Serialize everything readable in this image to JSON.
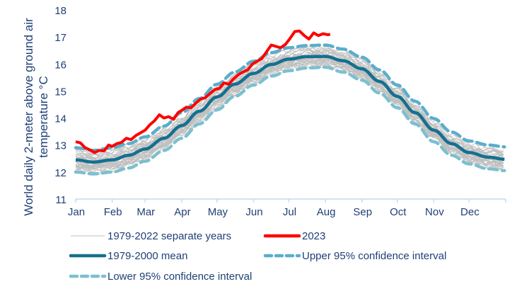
{
  "chart_data": {
    "type": "line",
    "title": "",
    "ylabel_lines": [
      "World daily 2-meter above ground air",
      "temperature °C"
    ],
    "xlabel": "",
    "ylim": [
      11,
      18
    ],
    "yticks": [
      11,
      12,
      13,
      14,
      15,
      16,
      17,
      18
    ],
    "xlim_day": [
      0,
      365
    ],
    "month_tick_days": [
      0,
      31,
      59,
      90,
      120,
      151,
      181,
      212,
      243,
      273,
      304,
      334,
      365
    ],
    "month_labels": [
      "Jan",
      "Feb",
      "Mar",
      "Apr",
      "May",
      "Jun",
      "Jul",
      "Aug",
      "Sep",
      "Oct",
      "Nov",
      "Dec"
    ],
    "grid": false,
    "legend_position": "bottom",
    "colors": {
      "separate_years": "#bfbfbf",
      "year_2023": "#ff0000",
      "mean": "#14708f",
      "upper_ci": "#5aaecb",
      "lower_ci": "#7cc0cf",
      "axis": "#c5d9f1",
      "text": "#1f3f77"
    },
    "series": [
      {
        "name": "1979-2000 mean",
        "key": "mean",
        "x_day": [
          0,
          15,
          31,
          45,
          59,
          75,
          90,
          105,
          120,
          135,
          151,
          166,
          181,
          196,
          212,
          227,
          243,
          258,
          273,
          288,
          304,
          319,
          334,
          350,
          365
        ],
        "values": [
          12.45,
          12.37,
          12.45,
          12.62,
          12.85,
          13.25,
          13.72,
          14.25,
          14.78,
          15.25,
          15.65,
          15.98,
          16.18,
          16.27,
          16.28,
          16.12,
          15.82,
          15.35,
          14.8,
          14.2,
          13.55,
          13.05,
          12.72,
          12.55,
          12.47
        ]
      },
      {
        "name": "Upper 95% confidence interval",
        "key": "upper_ci",
        "x_day": [
          0,
          15,
          31,
          45,
          59,
          75,
          90,
          105,
          120,
          135,
          151,
          166,
          181,
          196,
          212,
          227,
          243,
          258,
          273,
          288,
          304,
          319,
          334,
          350,
          365
        ],
        "values": [
          12.9,
          12.8,
          12.9,
          13.05,
          13.3,
          13.7,
          14.2,
          14.72,
          15.25,
          15.7,
          16.1,
          16.42,
          16.6,
          16.68,
          16.7,
          16.55,
          16.25,
          15.78,
          15.22,
          14.62,
          13.98,
          13.48,
          13.15,
          13.0,
          12.93
        ]
      },
      {
        "name": "Lower 95% confidence interval",
        "key": "lower_ci",
        "x_day": [
          0,
          15,
          31,
          45,
          59,
          75,
          90,
          105,
          120,
          135,
          151,
          166,
          181,
          196,
          212,
          227,
          243,
          258,
          273,
          288,
          304,
          319,
          334,
          350,
          365
        ],
        "values": [
          12.0,
          11.93,
          12.0,
          12.15,
          12.4,
          12.8,
          13.25,
          13.78,
          14.3,
          14.8,
          15.22,
          15.55,
          15.75,
          15.85,
          15.88,
          15.7,
          15.4,
          14.92,
          14.38,
          13.78,
          13.12,
          12.62,
          12.3,
          12.12,
          12.05
        ]
      },
      {
        "name": "2023",
        "key": "year_2023",
        "x_day": [
          0,
          4,
          8,
          12,
          16,
          20,
          24,
          28,
          31,
          35,
          39,
          43,
          47,
          51,
          55,
          59,
          63,
          67,
          71,
          75,
          79,
          83,
          87,
          90,
          94,
          98,
          102,
          106,
          110,
          114,
          118,
          122,
          126,
          130,
          134,
          138,
          142,
          146,
          150,
          154,
          158,
          162,
          166,
          170,
          174,
          178,
          182,
          186,
          190,
          194,
          198,
          202,
          206,
          210,
          214,
          216
        ],
        "values": [
          13.12,
          13.08,
          12.9,
          12.82,
          12.72,
          12.8,
          12.78,
          13.0,
          12.95,
          13.05,
          13.1,
          13.25,
          13.2,
          13.35,
          13.45,
          13.55,
          13.75,
          13.9,
          14.12,
          14.0,
          14.05,
          13.95,
          14.2,
          14.28,
          14.4,
          14.38,
          14.55,
          14.7,
          14.75,
          14.9,
          15.05,
          15.1,
          15.3,
          15.25,
          15.45,
          15.6,
          15.7,
          15.78,
          16.0,
          16.1,
          16.2,
          16.45,
          16.7,
          16.65,
          16.6,
          16.72,
          16.95,
          17.2,
          17.22,
          17.05,
          16.92,
          17.15,
          17.05,
          17.12,
          17.08,
          17.1
        ]
      },
      {
        "name": "1979-2022 separate years",
        "key": "separate_years",
        "year_count": 44,
        "note": "individual year traces scattered within the confidence band around the mean"
      }
    ],
    "legend": [
      {
        "label": "1979-2022 separate years",
        "key": "separate_years",
        "style": "thin"
      },
      {
        "label": "2023",
        "key": "year_2023",
        "style": "thick"
      },
      {
        "label": "1979-2000 mean",
        "key": "mean",
        "style": "thick"
      },
      {
        "label": "Upper 95% confidence interval",
        "key": "upper_ci",
        "style": "dashed"
      },
      {
        "label": "Lower 95% confidence interval",
        "key": "lower_ci",
        "style": "dashed"
      }
    ]
  }
}
